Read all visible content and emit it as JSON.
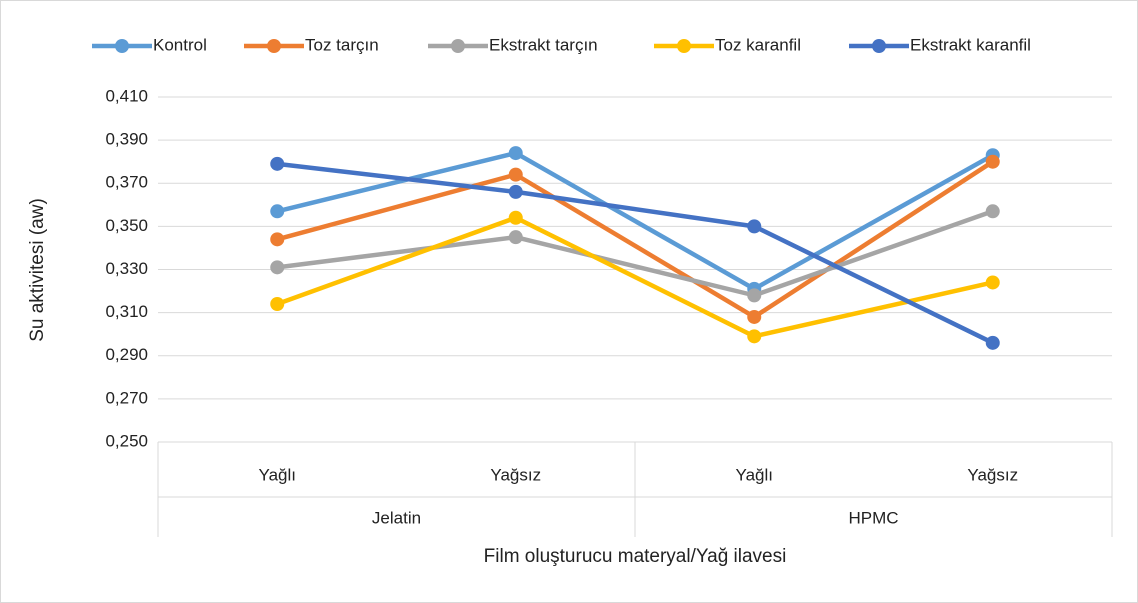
{
  "chart_data": {
    "type": "line",
    "x_label": "Film oluşturucu materyal/Yağ ilavesi",
    "y_label": "Su aktivitesi (aw)",
    "categories": [
      "Yağlı",
      "Yağsız",
      "Yağlı",
      "Yağsız"
    ],
    "groups": [
      "Jelatin",
      "HPMC"
    ],
    "series": [
      {
        "name": "Kontrol",
        "color": "#5b9bd5",
        "values": [
          0.357,
          0.384,
          0.321,
          0.383
        ]
      },
      {
        "name": "Toz tarçın",
        "color": "#ed7d31",
        "values": [
          0.344,
          0.374,
          0.308,
          0.38
        ]
      },
      {
        "name": "Ekstrakt tarçın",
        "color": "#a5a5a5",
        "values": [
          0.331,
          0.345,
          0.318,
          0.357
        ]
      },
      {
        "name": "Toz karanfil",
        "color": "#ffc000",
        "values": [
          0.314,
          0.354,
          0.299,
          0.324
        ]
      },
      {
        "name": "Ekstrakt karanfil",
        "color": "#4472c4",
        "values": [
          0.379,
          0.366,
          0.35,
          0.296
        ]
      }
    ],
    "ylim": [
      0.25,
      0.41
    ],
    "yticks": [
      {
        "value": 0.25,
        "label": "0,250"
      },
      {
        "value": 0.27,
        "label": "0,270"
      },
      {
        "value": 0.29,
        "label": "0,290"
      },
      {
        "value": 0.31,
        "label": "0,310"
      },
      {
        "value": 0.33,
        "label": "0,330"
      },
      {
        "value": 0.35,
        "label": "0,350"
      },
      {
        "value": 0.37,
        "label": "0,370"
      },
      {
        "value": 0.39,
        "label": "0,390"
      },
      {
        "value": 0.41,
        "label": "0,410"
      }
    ],
    "grid": true,
    "legend": "top"
  }
}
